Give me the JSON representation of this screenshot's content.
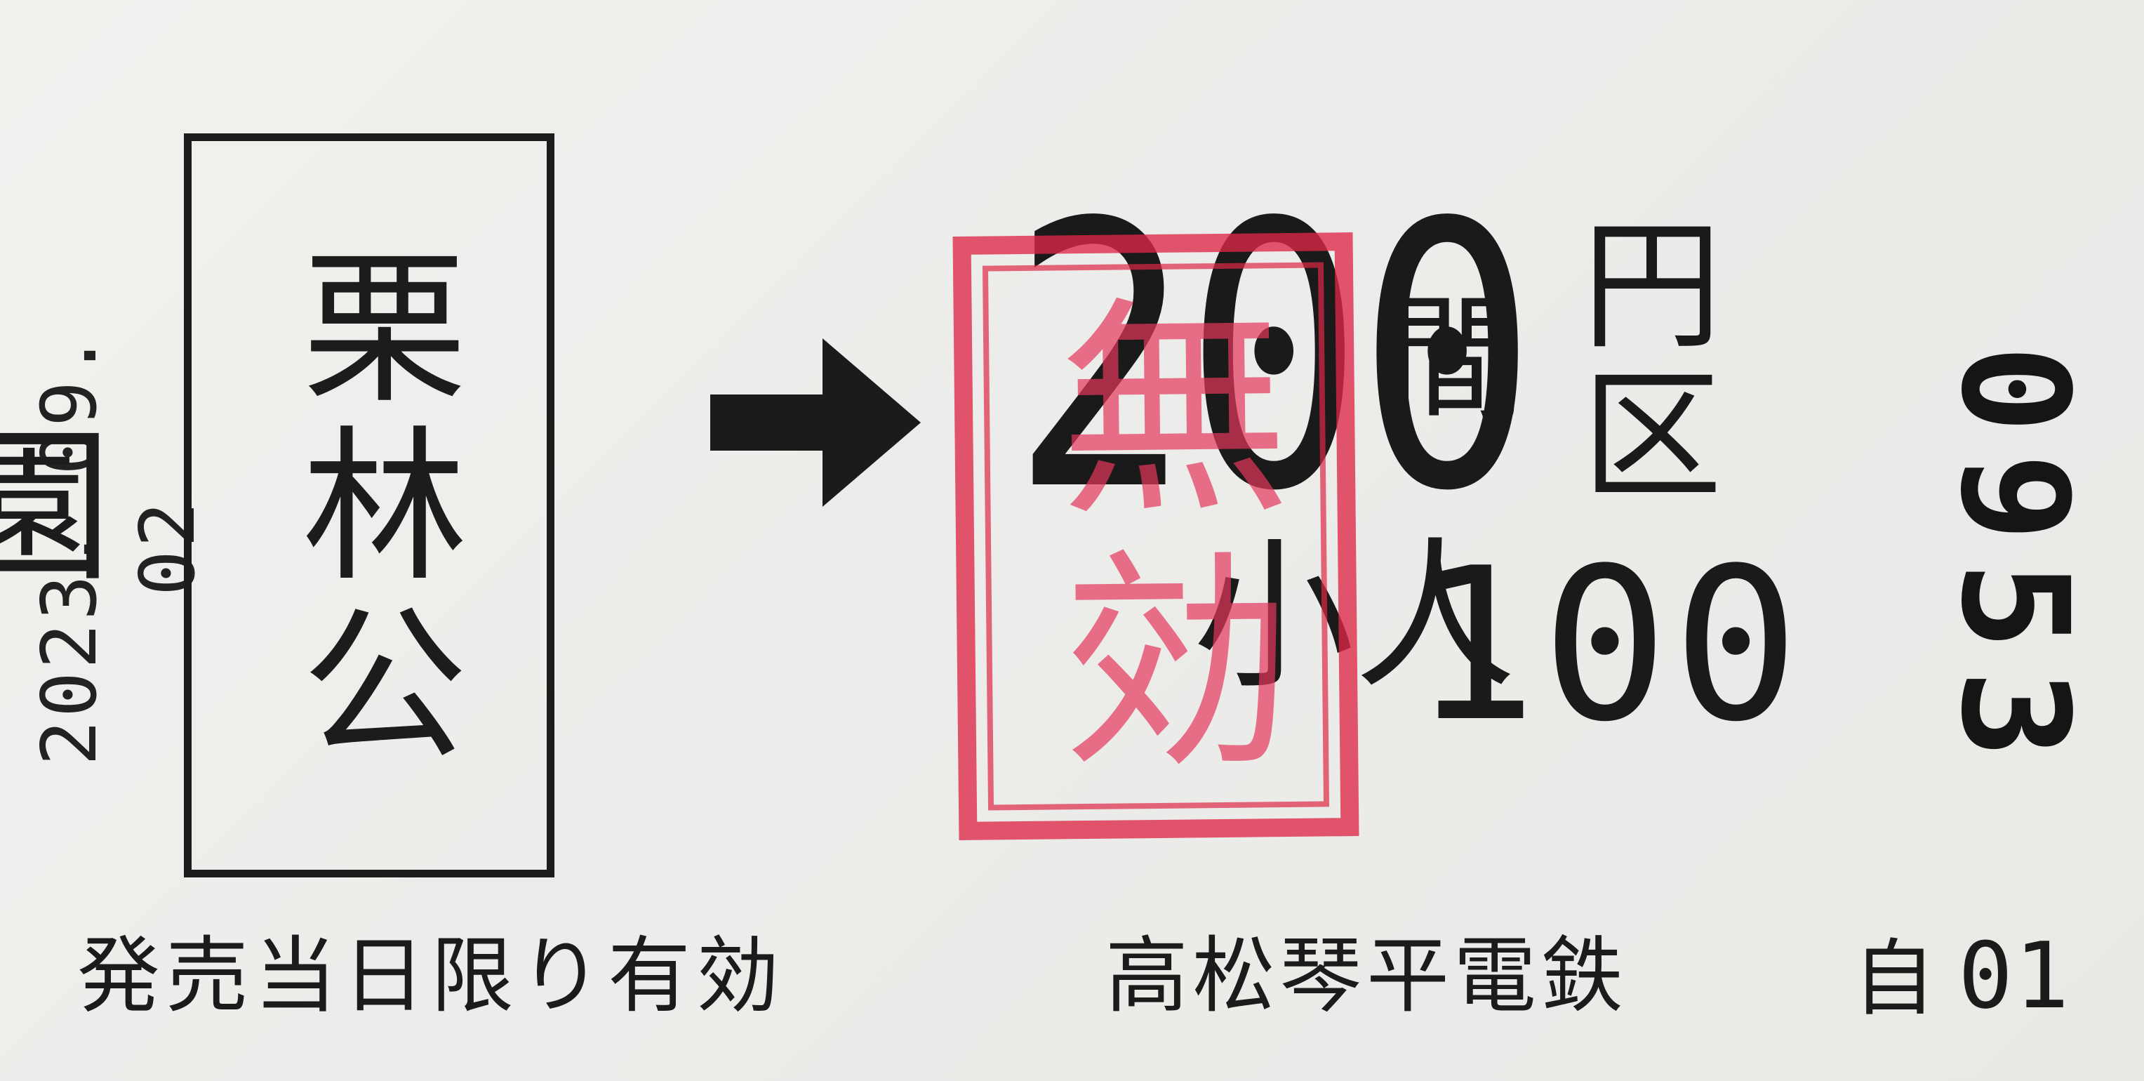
{
  "ticket": {
    "date": "2023. 09. 02",
    "station": "栗林公園",
    "fare": "200",
    "fare_unit_zone": "円区間",
    "child_label": "小人",
    "child_fare": "100",
    "void_stamp": "無効",
    "serial": "0953",
    "validity_note": "発売当日限り有効",
    "railway_company": "高松琴平電鉄",
    "machine_prefix": "自",
    "machine_number": "01",
    "arrow_icon": "right-arrow-icon",
    "colors": {
      "ink": "#1b1b1b",
      "paper": "#ececea",
      "stamp": "#de2846"
    }
  }
}
